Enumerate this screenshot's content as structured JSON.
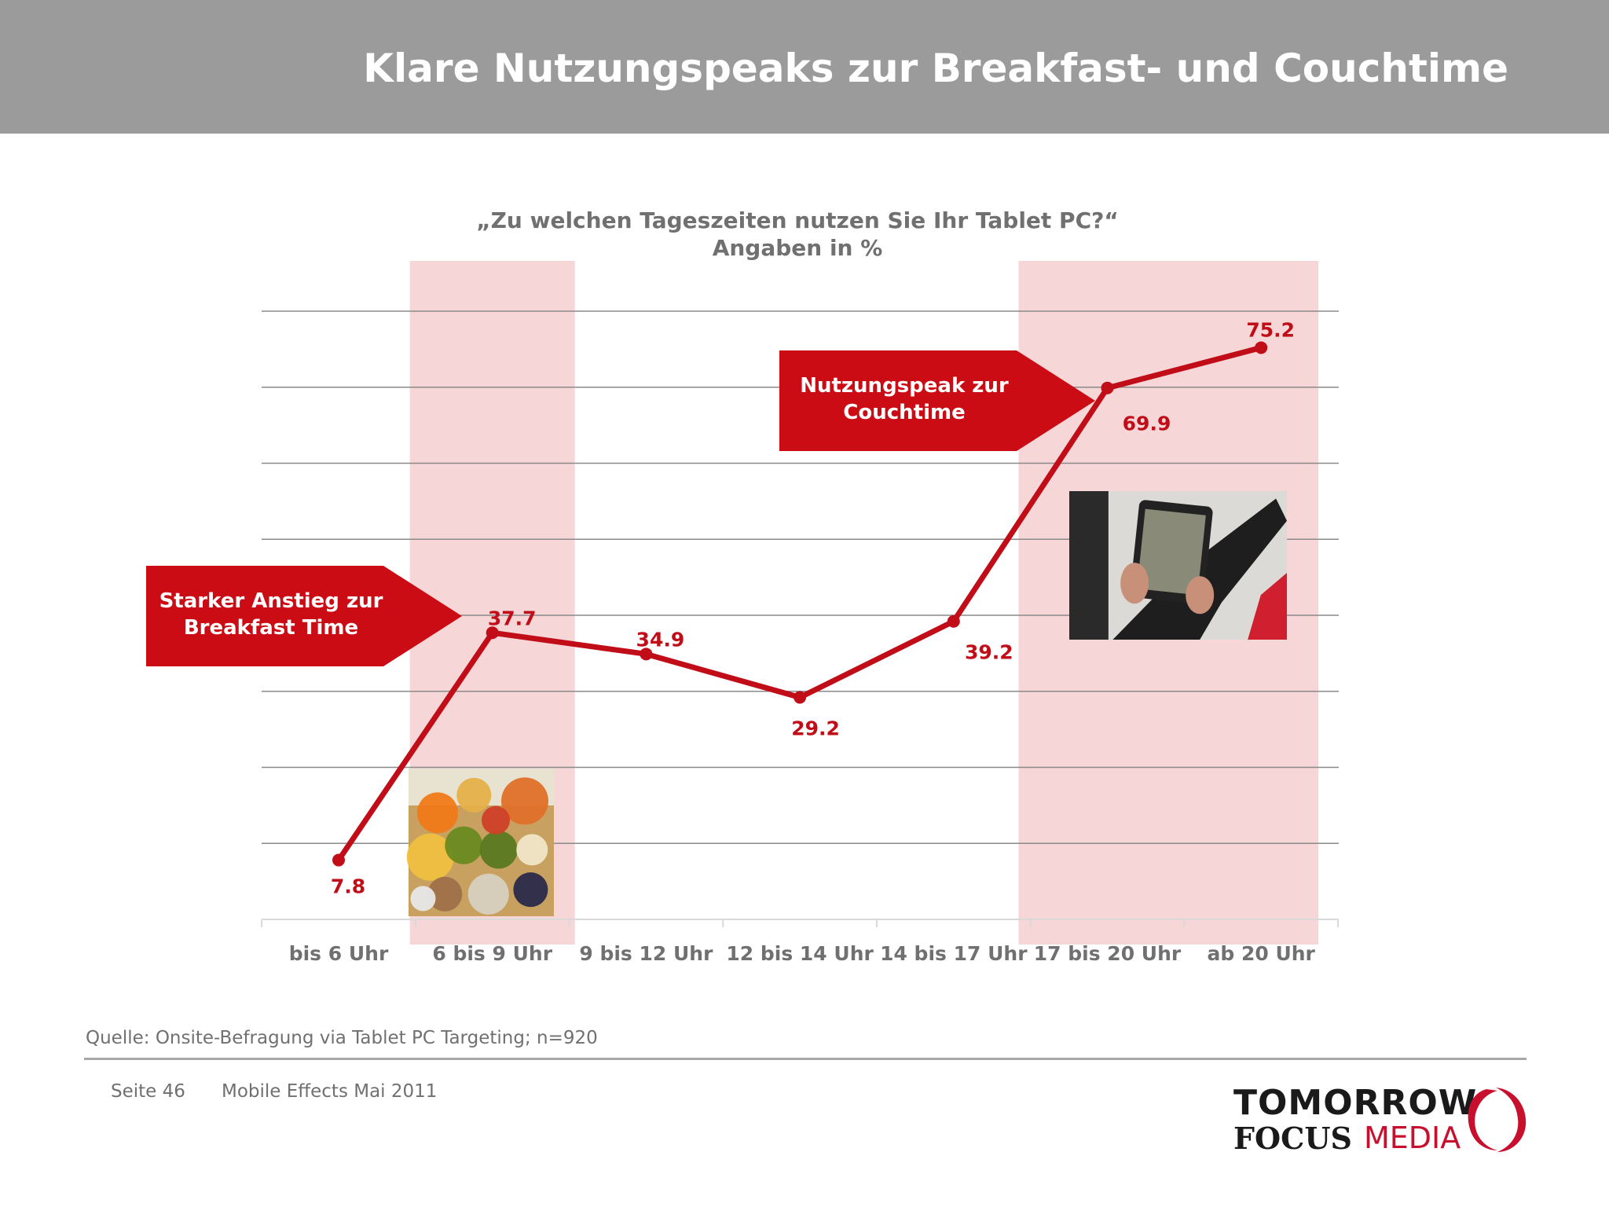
{
  "header": {
    "title": "Klare Nutzungspeaks zur Breakfast- und Couchtime"
  },
  "chart_data": {
    "type": "line",
    "title": "„Zu welchen Tageszeiten nutzen Sie Ihr Tablet PC?“",
    "subtitle": "Angaben in %",
    "categories": [
      "bis 6 Uhr",
      "6 bis 9 Uhr",
      "9 bis 12 Uhr",
      "12 bis 14 Uhr",
      "14 bis 17 Uhr",
      "17 bis 20 Uhr",
      "ab 20 Uhr"
    ],
    "series": [
      {
        "values": [
          7.8,
          37.7,
          34.9,
          29.2,
          39.2,
          69.9,
          75.2
        ]
      }
    ],
    "data_labels": [
      "7.8",
      "37.7",
      "34.9",
      "29.2",
      "39.2",
      "69.9",
      "75.2"
    ],
    "ylim": [
      0,
      80
    ],
    "grid": true,
    "highlighted_categories": [
      "6 bis 9 Uhr",
      "17 bis 20 Uhr",
      "ab 20 Uhr"
    ],
    "annotations": [
      {
        "text_lines": [
          "Starker Anstieg zur",
          "Breakfast Time"
        ],
        "points_to": "6 bis 9 Uhr"
      },
      {
        "text_lines": [
          "Nutzungspeak zur",
          "Couchtime"
        ],
        "points_to": "17 bis 20 Uhr"
      }
    ],
    "images": [
      {
        "icon": "breakfast-photo",
        "category": "6 bis 9 Uhr"
      },
      {
        "icon": "tablet-couch-photo",
        "category": "ab 20 Uhr"
      }
    ],
    "colors": {
      "line": "#c00d18",
      "highlight": "#f6d6d7",
      "callout": "#cc0c14",
      "grid": "#8a8a8a",
      "label": "#707070"
    }
  },
  "footer": {
    "source": "Quelle: Onsite-Befragung via Tablet PC Targeting; n=920",
    "page": "Seite 46",
    "report": "Mobile Effects Mai 2011"
  },
  "logo": {
    "line1": "TOMORROW",
    "line2a": "FOCUS",
    "line2b": "MEDIA",
    "icon": "focus-media-swoosh"
  }
}
